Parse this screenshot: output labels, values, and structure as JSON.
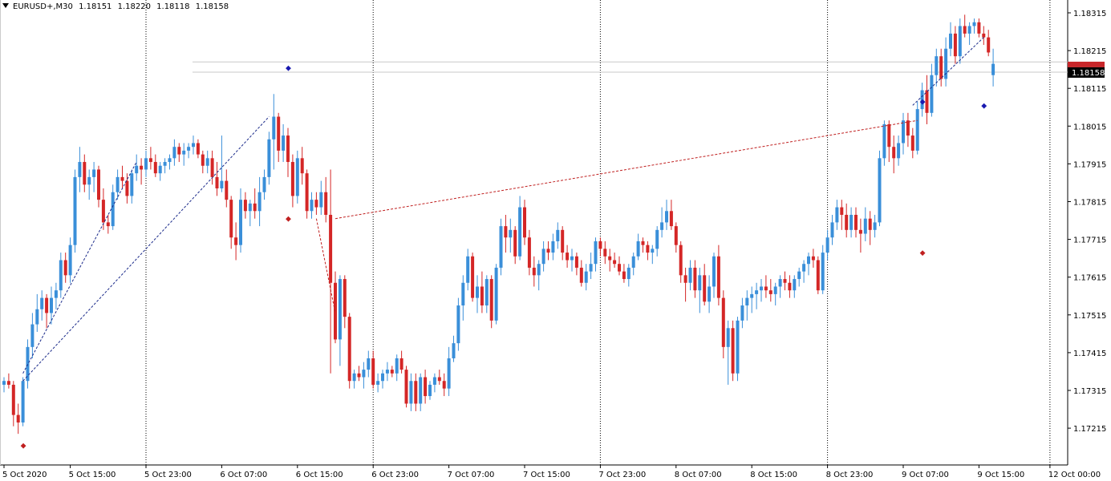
{
  "header": {
    "symbol": "EURUSD+,M30",
    "open": "1.18151",
    "high": "1.18220",
    "low": "1.18118",
    "close": "1.18158"
  },
  "colors": {
    "bull": "#3a8fd9",
    "bear": "#d42626",
    "grid": "#000000",
    "axis": "#000000",
    "price_line": "#c8c8c8",
    "price_tag_bg": "#000000",
    "price_tag_bg_red": "#c8262a",
    "zigzag_blue": "#1a2a8a",
    "zigzag_red": "#c02020",
    "fractal_up": "#1a1ab0",
    "fractal_down": "#c02020",
    "marker_yellow": "#e8c000"
  },
  "chart_data": {
    "type": "candlestick",
    "title": "",
    "xlabel": "",
    "ylabel": "",
    "ylim": [
      1.1715,
      1.1836
    ],
    "y_ticks": [
      "1.18315",
      "1.18215",
      "1.18115",
      "1.18015",
      "1.17915",
      "1.17815",
      "1.17715",
      "1.17615",
      "1.17515",
      "1.17415",
      "1.17315",
      "1.17215"
    ],
    "x_ticks": [
      {
        "label": "5 Oct 2020",
        "i": 0
      },
      {
        "label": "5 Oct 15:00",
        "i": 14
      },
      {
        "label": "5 Oct 23:00",
        "i": 30
      },
      {
        "label": "6 Oct 07:00",
        "i": 46
      },
      {
        "label": "6 Oct 15:00",
        "i": 62
      },
      {
        "label": "6 Oct 23:00",
        "i": 78
      },
      {
        "label": "7 Oct 07:00",
        "i": 94
      },
      {
        "label": "7 Oct 15:00",
        "i": 110
      },
      {
        "label": "7 Oct 23:00",
        "i": 126
      },
      {
        "label": "8 Oct 07:00",
        "i": 142
      },
      {
        "label": "8 Oct 15:00",
        "i": 158
      },
      {
        "label": "8 Oct 23:00",
        "i": 174
      },
      {
        "label": "9 Oct 07:00",
        "i": 190
      },
      {
        "label": "9 Oct 15:00",
        "i": 206
      },
      {
        "label": "12 Oct 00:00",
        "i": 221
      }
    ],
    "session_separators": [
      "5 Oct 23:00",
      "6 Oct 23:00",
      "7 Oct 23:00",
      "8 Oct 23:00",
      "12 Oct 00:00"
    ],
    "hidden_separators": [
      "6 Oct 07:00",
      "7 Oct 07:00",
      "7 Oct 15:00",
      "8 Oct 07:00",
      "9 Oct 07:00"
    ],
    "current_price": "1.18158",
    "price_lines": [
      1.18185,
      1.18158
    ],
    "candles": [
      [
        1.1733,
        1.1735,
        1.1731,
        1.1734
      ],
      [
        1.1734,
        1.1736,
        1.1732,
        1.1733
      ],
      [
        1.1733,
        1.1734,
        1.1722,
        1.1725
      ],
      [
        1.1725,
        1.1728,
        1.172,
        1.1723
      ],
      [
        1.1723,
        1.1735,
        1.1722,
        1.1734
      ],
      [
        1.1734,
        1.1745,
        1.1732,
        1.1743
      ],
      [
        1.1743,
        1.1752,
        1.174,
        1.1749
      ],
      [
        1.1749,
        1.1757,
        1.1747,
        1.1753
      ],
      [
        1.1753,
        1.1758,
        1.175,
        1.1756
      ],
      [
        1.1756,
        1.1757,
        1.1748,
        1.1752
      ],
      [
        1.1752,
        1.1759,
        1.1749,
        1.1756
      ],
      [
        1.1756,
        1.176,
        1.1753,
        1.1758
      ],
      [
        1.1758,
        1.1768,
        1.1756,
        1.1766
      ],
      [
        1.1766,
        1.1768,
        1.176,
        1.1762
      ],
      [
        1.1762,
        1.1772,
        1.176,
        1.177
      ],
      [
        1.177,
        1.179,
        1.1768,
        1.1788
      ],
      [
        1.1788,
        1.1796,
        1.1784,
        1.1792
      ],
      [
        1.1792,
        1.1794,
        1.1784,
        1.1786
      ],
      [
        1.1786,
        1.179,
        1.1782,
        1.1788
      ],
      [
        1.1788,
        1.1792,
        1.1784,
        1.179
      ],
      [
        1.179,
        1.1791,
        1.178,
        1.1782
      ],
      [
        1.1782,
        1.1785,
        1.1774,
        1.1776
      ],
      [
        1.1776,
        1.1778,
        1.1773,
        1.1775
      ],
      [
        1.1775,
        1.1786,
        1.1774,
        1.1784
      ],
      [
        1.1784,
        1.179,
        1.1782,
        1.1788
      ],
      [
        1.1788,
        1.1791,
        1.1785,
        1.1787
      ],
      [
        1.1787,
        1.1789,
        1.1781,
        1.1783
      ],
      [
        1.1783,
        1.179,
        1.1781,
        1.1789
      ],
      [
        1.1789,
        1.1794,
        1.1787,
        1.1791
      ],
      [
        1.1791,
        1.1793,
        1.1786,
        1.179
      ],
      [
        1.179,
        1.1795,
        1.1788,
        1.1793
      ],
      [
        1.1793,
        1.1796,
        1.179,
        1.1792
      ],
      [
        1.1792,
        1.1794,
        1.1788,
        1.1789
      ],
      [
        1.1789,
        1.1792,
        1.1787,
        1.1791
      ],
      [
        1.1791,
        1.1793,
        1.1789,
        1.1792
      ],
      [
        1.1792,
        1.1794,
        1.179,
        1.1793
      ],
      [
        1.1793,
        1.1798,
        1.1791,
        1.1796
      ],
      [
        1.1796,
        1.1797,
        1.1792,
        1.1794
      ],
      [
        1.1794,
        1.1797,
        1.1791,
        1.1795
      ],
      [
        1.1795,
        1.1797,
        1.1793,
        1.1796
      ],
      [
        1.1796,
        1.1799,
        1.1794,
        1.1797
      ],
      [
        1.1797,
        1.1798,
        1.1793,
        1.1794
      ],
      [
        1.1794,
        1.1795,
        1.1789,
        1.1791
      ],
      [
        1.1791,
        1.1795,
        1.1789,
        1.1793
      ],
      [
        1.1793,
        1.1795,
        1.1786,
        1.1788
      ],
      [
        1.1788,
        1.1792,
        1.1783,
        1.1785
      ],
      [
        1.1785,
        1.1799,
        1.1784,
        1.1787
      ],
      [
        1.1787,
        1.179,
        1.178,
        1.1782
      ],
      [
        1.1782,
        1.1783,
        1.1769,
        1.1772
      ],
      [
        1.1772,
        1.1776,
        1.1766,
        1.177
      ],
      [
        1.177,
        1.1785,
        1.1768,
        1.1782
      ],
      [
        1.1782,
        1.1784,
        1.1777,
        1.1779
      ],
      [
        1.1779,
        1.1782,
        1.1775,
        1.1781
      ],
      [
        1.1781,
        1.1785,
        1.1777,
        1.1779
      ],
      [
        1.1779,
        1.1788,
        1.1775,
        1.1784
      ],
      [
        1.1784,
        1.179,
        1.1782,
        1.1788
      ],
      [
        1.1788,
        1.18,
        1.1786,
        1.1798
      ],
      [
        1.1798,
        1.181,
        1.179,
        1.1804
      ],
      [
        1.1804,
        1.1805,
        1.1792,
        1.1795
      ],
      [
        1.1795,
        1.1802,
        1.1792,
        1.1799
      ],
      [
        1.1799,
        1.1801,
        1.1788,
        1.1792
      ],
      [
        1.1792,
        1.1794,
        1.178,
        1.1783
      ],
      [
        1.1783,
        1.1795,
        1.1781,
        1.1793
      ],
      [
        1.1793,
        1.1796,
        1.1786,
        1.1789
      ],
      [
        1.1789,
        1.179,
        1.1777,
        1.1779
      ],
      [
        1.1779,
        1.1784,
        1.1777,
        1.1782
      ],
      [
        1.1782,
        1.1784,
        1.1778,
        1.178
      ],
      [
        1.178,
        1.1787,
        1.1778,
        1.1784
      ],
      [
        1.1784,
        1.1788,
        1.1776,
        1.1778
      ],
      [
        1.1778,
        1.179,
        1.1736,
        1.176
      ],
      [
        1.176,
        1.1763,
        1.1744,
        1.1745
      ],
      [
        1.1745,
        1.1762,
        1.1738,
        1.1761
      ],
      [
        1.1761,
        1.1762,
        1.1748,
        1.1751
      ],
      [
        1.1751,
        1.1752,
        1.1732,
        1.1734
      ],
      [
        1.1734,
        1.1737,
        1.1732,
        1.1736
      ],
      [
        1.1736,
        1.1738,
        1.1734,
        1.1735
      ],
      [
        1.1735,
        1.1739,
        1.1732,
        1.1737
      ],
      [
        1.1737,
        1.1742,
        1.1735,
        1.174
      ],
      [
        1.174,
        1.1742,
        1.1732,
        1.1733
      ],
      [
        1.1733,
        1.1736,
        1.1731,
        1.1734
      ],
      [
        1.1734,
        1.1737,
        1.1732,
        1.1736
      ],
      [
        1.1736,
        1.1739,
        1.1734,
        1.1737
      ],
      [
        1.1737,
        1.1738,
        1.1735,
        1.1736
      ],
      [
        1.1736,
        1.1741,
        1.1734,
        1.174
      ],
      [
        1.174,
        1.1742,
        1.1736,
        1.1737
      ],
      [
        1.1737,
        1.1738,
        1.1727,
        1.1728
      ],
      [
        1.1728,
        1.1736,
        1.1726,
        1.1734
      ],
      [
        1.1734,
        1.1736,
        1.1726,
        1.1728
      ],
      [
        1.1728,
        1.1736,
        1.1726,
        1.1735
      ],
      [
        1.1735,
        1.1737,
        1.1728,
        1.173
      ],
      [
        1.173,
        1.1734,
        1.1729,
        1.1733
      ],
      [
        1.1733,
        1.1736,
        1.1731,
        1.1735
      ],
      [
        1.1735,
        1.1737,
        1.1733,
        1.1734
      ],
      [
        1.1734,
        1.1736,
        1.173,
        1.1732
      ],
      [
        1.1732,
        1.1743,
        1.173,
        1.174
      ],
      [
        1.174,
        1.1746,
        1.1739,
        1.1744
      ],
      [
        1.1744,
        1.1756,
        1.1742,
        1.1754
      ],
      [
        1.1754,
        1.1762,
        1.175,
        1.176
      ],
      [
        1.176,
        1.1769,
        1.1758,
        1.1767
      ],
      [
        1.1767,
        1.1768,
        1.1755,
        1.1756
      ],
      [
        1.1756,
        1.1762,
        1.1752,
        1.1759
      ],
      [
        1.1759,
        1.1763,
        1.1752,
        1.1754
      ],
      [
        1.1754,
        1.1762,
        1.1752,
        1.1761
      ],
      [
        1.1761,
        1.1762,
        1.1748,
        1.175
      ],
      [
        1.175,
        1.1765,
        1.1749,
        1.1764
      ],
      [
        1.1764,
        1.1777,
        1.1762,
        1.1775
      ],
      [
        1.1775,
        1.1778,
        1.1768,
        1.1772
      ],
      [
        1.1772,
        1.1777,
        1.1768,
        1.1774
      ],
      [
        1.1774,
        1.1775,
        1.1765,
        1.1767
      ],
      [
        1.1767,
        1.1783,
        1.1766,
        1.178
      ],
      [
        1.178,
        1.1782,
        1.177,
        1.1772
      ],
      [
        1.1772,
        1.1774,
        1.1762,
        1.1764
      ],
      [
        1.1764,
        1.1767,
        1.1759,
        1.1762
      ],
      [
        1.1762,
        1.1766,
        1.1758,
        1.1765
      ],
      [
        1.1765,
        1.1771,
        1.1763,
        1.1769
      ],
      [
        1.1769,
        1.1771,
        1.1766,
        1.1768
      ],
      [
        1.1768,
        1.1773,
        1.1766,
        1.1771
      ],
      [
        1.1771,
        1.1776,
        1.1769,
        1.1774
      ],
      [
        1.1774,
        1.1775,
        1.1766,
        1.1768
      ],
      [
        1.1768,
        1.177,
        1.1764,
        1.1766
      ],
      [
        1.1766,
        1.1769,
        1.1763,
        1.1767
      ],
      [
        1.1767,
        1.1768,
        1.1762,
        1.1764
      ],
      [
        1.1764,
        1.1766,
        1.1759,
        1.176
      ],
      [
        1.176,
        1.1765,
        1.1758,
        1.1763
      ],
      [
        1.1763,
        1.1768,
        1.1761,
        1.1765
      ],
      [
        1.1765,
        1.1772,
        1.1763,
        1.1771
      ],
      [
        1.1771,
        1.1772,
        1.1767,
        1.1769
      ],
      [
        1.1769,
        1.1771,
        1.1765,
        1.1767
      ],
      [
        1.1767,
        1.1769,
        1.1763,
        1.1766
      ],
      [
        1.1766,
        1.1768,
        1.1764,
        1.1765
      ],
      [
        1.1765,
        1.1767,
        1.1762,
        1.1763
      ],
      [
        1.1763,
        1.1765,
        1.176,
        1.1761
      ],
      [
        1.1761,
        1.1765,
        1.1759,
        1.1764
      ],
      [
        1.1764,
        1.1768,
        1.1762,
        1.1767
      ],
      [
        1.1767,
        1.1773,
        1.1766,
        1.1771
      ],
      [
        1.1771,
        1.1772,
        1.1768,
        1.177
      ],
      [
        1.177,
        1.1771,
        1.1766,
        1.1768
      ],
      [
        1.1768,
        1.177,
        1.1765,
        1.1769
      ],
      [
        1.1769,
        1.1775,
        1.1767,
        1.1774
      ],
      [
        1.1774,
        1.178,
        1.1772,
        1.1776
      ],
      [
        1.1776,
        1.1782,
        1.1774,
        1.1779
      ],
      [
        1.1779,
        1.1782,
        1.1774,
        1.1775
      ],
      [
        1.1775,
        1.1776,
        1.1768,
        1.177
      ],
      [
        1.177,
        1.1771,
        1.176,
        1.1762
      ],
      [
        1.1762,
        1.1764,
        1.1755,
        1.176
      ],
      [
        1.176,
        1.1766,
        1.1758,
        1.1764
      ],
      [
        1.1764,
        1.1766,
        1.1756,
        1.1758
      ],
      [
        1.1758,
        1.1764,
        1.1752,
        1.1762
      ],
      [
        1.1762,
        1.1765,
        1.1754,
        1.1755
      ],
      [
        1.1755,
        1.1762,
        1.1752,
        1.1759
      ],
      [
        1.1759,
        1.1768,
        1.1756,
        1.1767
      ],
      [
        1.1767,
        1.177,
        1.1754,
        1.1756
      ],
      [
        1.1756,
        1.1758,
        1.174,
        1.1743
      ],
      [
        1.1743,
        1.175,
        1.1733,
        1.1748
      ],
      [
        1.1748,
        1.175,
        1.1734,
        1.1736
      ],
      [
        1.1736,
        1.1751,
        1.1734,
        1.175
      ],
      [
        1.175,
        1.1756,
        1.1748,
        1.1754
      ],
      [
        1.1754,
        1.1758,
        1.175,
        1.1756
      ],
      [
        1.1756,
        1.1759,
        1.1752,
        1.1757
      ],
      [
        1.1757,
        1.176,
        1.1753,
        1.1758
      ],
      [
        1.1758,
        1.1761,
        1.1755,
        1.1759
      ],
      [
        1.1759,
        1.1762,
        1.1756,
        1.1758
      ],
      [
        1.1758,
        1.1761,
        1.1755,
        1.1757
      ],
      [
        1.1757,
        1.176,
        1.1754,
        1.1759
      ],
      [
        1.1759,
        1.1762,
        1.1756,
        1.1761
      ],
      [
        1.1761,
        1.1763,
        1.1758,
        1.176
      ],
      [
        1.176,
        1.1762,
        1.1756,
        1.1758
      ],
      [
        1.1758,
        1.1762,
        1.1756,
        1.1761
      ],
      [
        1.1761,
        1.1764,
        1.1759,
        1.1763
      ],
      [
        1.1763,
        1.1766,
        1.176,
        1.1765
      ],
      [
        1.1765,
        1.1768,
        1.1762,
        1.1767
      ],
      [
        1.1767,
        1.1769,
        1.1764,
        1.1766
      ],
      [
        1.1766,
        1.1767,
        1.1757,
        1.1758
      ],
      [
        1.1758,
        1.177,
        1.1757,
        1.1768
      ],
      [
        1.1768,
        1.1774,
        1.1766,
        1.1772
      ],
      [
        1.1772,
        1.1778,
        1.177,
        1.1776
      ],
      [
        1.1776,
        1.1782,
        1.1774,
        1.178
      ],
      [
        1.178,
        1.1782,
        1.1774,
        1.1778
      ],
      [
        1.1778,
        1.1781,
        1.1772,
        1.1774
      ],
      [
        1.1774,
        1.178,
        1.1772,
        1.1778
      ],
      [
        1.1778,
        1.178,
        1.1772,
        1.1774
      ],
      [
        1.1774,
        1.1777,
        1.1768,
        1.1773
      ],
      [
        1.1773,
        1.178,
        1.1771,
        1.1777
      ],
      [
        1.1777,
        1.1779,
        1.177,
        1.1774
      ],
      [
        1.1774,
        1.1778,
        1.1772,
        1.1776
      ],
      [
        1.1776,
        1.1795,
        1.1775,
        1.1793
      ],
      [
        1.1793,
        1.1803,
        1.1791,
        1.1802
      ],
      [
        1.1802,
        1.1803,
        1.1792,
        1.1796
      ],
      [
        1.1796,
        1.1799,
        1.1789,
        1.1793
      ],
      [
        1.1793,
        1.1799,
        1.1791,
        1.1797
      ],
      [
        1.1797,
        1.1805,
        1.1794,
        1.1803
      ],
      [
        1.1803,
        1.1805,
        1.1796,
        1.1799
      ],
      [
        1.1799,
        1.1801,
        1.1793,
        1.1795
      ],
      [
        1.1795,
        1.1808,
        1.1794,
        1.1806
      ],
      [
        1.1806,
        1.1813,
        1.1804,
        1.1811
      ],
      [
        1.1811,
        1.1815,
        1.1802,
        1.1805
      ],
      [
        1.1805,
        1.1818,
        1.1804,
        1.1815
      ],
      [
        1.1815,
        1.1822,
        1.1812,
        1.182
      ],
      [
        1.182,
        1.1822,
        1.1812,
        1.1814
      ],
      [
        1.1814,
        1.1825,
        1.1812,
        1.1822
      ],
      [
        1.1822,
        1.1829,
        1.182,
        1.1826
      ],
      [
        1.1826,
        1.1828,
        1.1818,
        1.182
      ],
      [
        1.182,
        1.183,
        1.1818,
        1.1828
      ],
      [
        1.1828,
        1.1831,
        1.1825,
        1.1826
      ],
      [
        1.1826,
        1.1829,
        1.1823,
        1.1828
      ],
      [
        1.1828,
        1.183,
        1.1826,
        1.1829
      ],
      [
        1.1829,
        1.183,
        1.1825,
        1.1826
      ],
      [
        1.1826,
        1.1828,
        1.1823,
        1.1825
      ],
      [
        1.1825,
        1.1827,
        1.182,
        1.1821
      ],
      [
        1.1815,
        1.1822,
        1.1812,
        1.1818
      ]
    ],
    "zigzag_blue": [
      [
        4,
        1.1734
      ],
      [
        56,
        1.1804
      ],
      [
        4,
        1.1736
      ],
      [
        28,
        1.1792
      ],
      [
        192,
        1.1807
      ],
      [
        207,
        1.1825
      ]
    ],
    "zigzag_red": [
      [
        66,
        1.1777
      ],
      [
        70,
        1.1752
      ],
      [
        70,
        1.1777
      ],
      [
        193,
        1.1803
      ]
    ],
    "fractals_up": [
      [
        60,
        1.1817
      ],
      [
        194,
        1.1808
      ],
      [
        207,
        1.1807
      ]
    ],
    "fractals_down": [
      [
        4,
        1.1717
      ],
      [
        60,
        1.1777
      ],
      [
        194,
        1.1768
      ]
    ]
  }
}
